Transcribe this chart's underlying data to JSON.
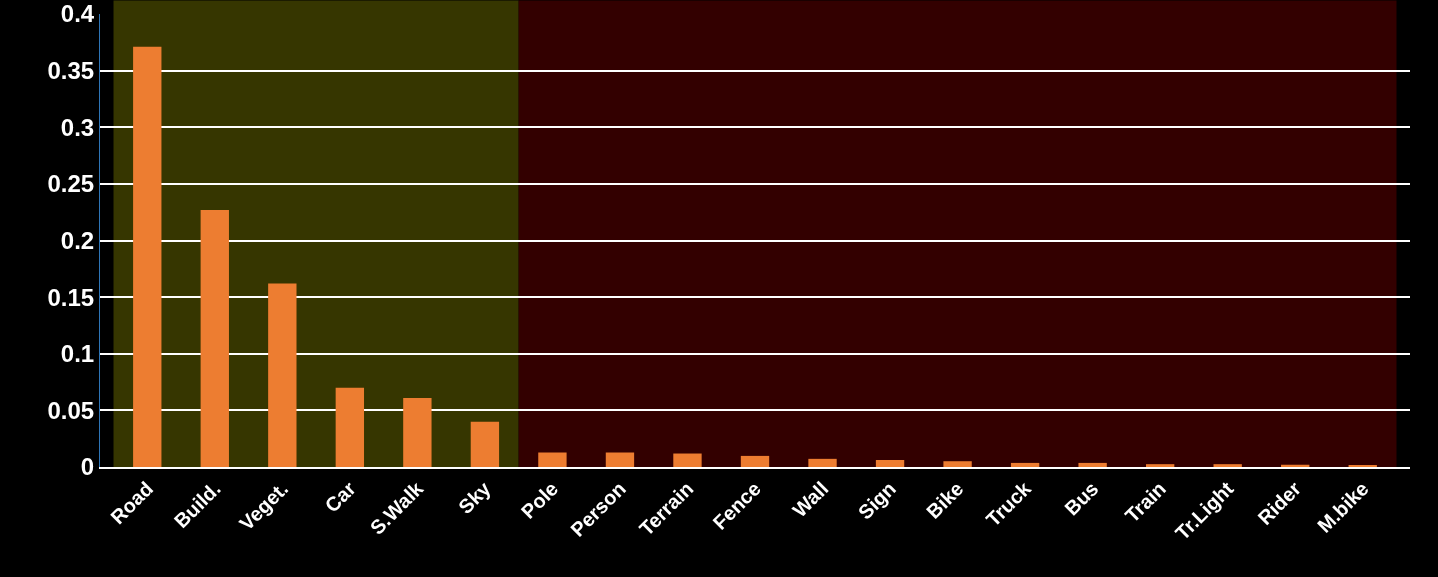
{
  "chart_data": {
    "type": "bar",
    "categories": [
      "Road",
      "Build.",
      "Veget.",
      "Car",
      "S.Walk",
      "Sky",
      "Pole",
      "Person",
      "Terrain",
      "Fence",
      "Wall",
      "Sign",
      "Bike",
      "Truck",
      "Bus",
      "Train",
      "Tr.Light",
      "Rider",
      "M.bike"
    ],
    "values": [
      0.371,
      0.227,
      0.162,
      0.07,
      0.061,
      0.04,
      0.0128,
      0.0128,
      0.0119,
      0.0098,
      0.0072,
      0.0062,
      0.0051,
      0.0036,
      0.0036,
      0.0025,
      0.0025,
      0.002,
      0.0015
    ],
    "color": "#ed7d31",
    "ylim": [
      0,
      0.4
    ],
    "yticks": [
      {
        "value": 0,
        "label": "0"
      },
      0.05,
      0.1,
      0.15,
      0.2,
      0.25,
      0.3,
      0.35,
      0.4
    ],
    "grid": "y",
    "bands": [
      {
        "axis": "x",
        "from": "Road",
        "to": "Sky",
        "color": "#363600"
      },
      {
        "axis": "x",
        "from": "Pole",
        "to": "M.bike",
        "color": "#330000"
      }
    ]
  }
}
